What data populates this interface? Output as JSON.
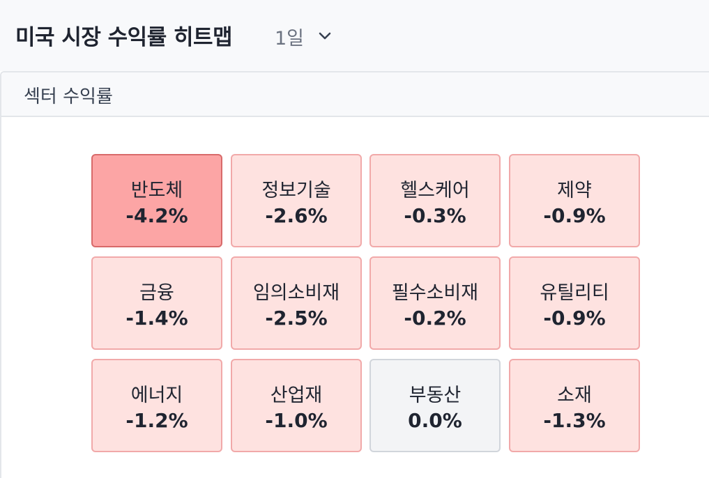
{
  "header": {
    "title": "미국 시장 수익률 히트맵",
    "period": "1일",
    "period_icon": "chevron-down-icon"
  },
  "panel": {
    "title": "섹터 수익률"
  },
  "colors": {
    "strong_negative_fill": "#fca5a5",
    "negative_fill": "#fee2e0",
    "neutral_fill": "#f3f4f6"
  },
  "sectors": [
    {
      "name": "반도체",
      "value": "-4.2%"
    },
    {
      "name": "정보기술",
      "value": "-2.6%"
    },
    {
      "name": "헬스케어",
      "value": "-0.3%"
    },
    {
      "name": "제약",
      "value": "-0.9%"
    },
    {
      "name": "금융",
      "value": "-1.4%"
    },
    {
      "name": "임의소비재",
      "value": "-2.5%"
    },
    {
      "name": "필수소비재",
      "value": "-0.2%"
    },
    {
      "name": "유틸리티",
      "value": "-0.9%"
    },
    {
      "name": "에너지",
      "value": "-1.2%"
    },
    {
      "name": "산업재",
      "value": "-1.0%"
    },
    {
      "name": "부동산",
      "value": "0.0%"
    },
    {
      "name": "소재",
      "value": "-1.3%"
    }
  ]
}
